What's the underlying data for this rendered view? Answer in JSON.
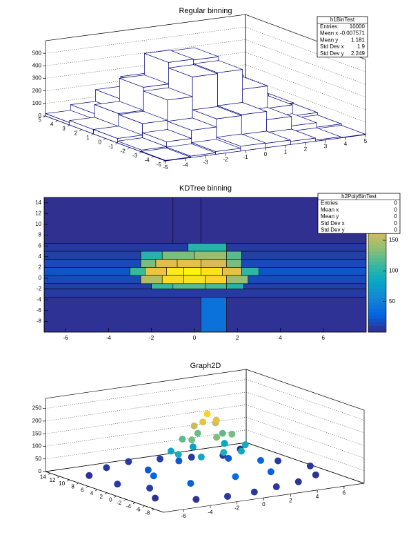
{
  "chart_data": [
    {
      "type": "lego",
      "title": "Regular binning",
      "x_edges": [
        -5,
        -3.75,
        -2.5,
        -1.25,
        0,
        1.25,
        2.5,
        3.75,
        5
      ],
      "y_edges": [
        -5,
        -3,
        -1,
        1,
        3,
        5
      ],
      "values": [
        [
          4,
          12,
          22,
          38,
          35,
          25,
          9,
          3
        ],
        [
          15,
          55,
          120,
          185,
          192,
          126,
          50,
          14
        ],
        [
          36,
          128,
          290,
          448,
          455,
          297,
          120,
          33
        ],
        [
          35,
          136,
          320,
          492,
          485,
          312,
          138,
          39
        ],
        [
          19,
          64,
          158,
          236,
          244,
          150,
          68,
          17
        ]
      ],
      "xlim": [
        -5,
        5
      ],
      "ylim": [
        -5,
        5
      ],
      "zlim": [
        0,
        600
      ],
      "xticks": [
        -5,
        -4,
        -3,
        -2,
        -1,
        0,
        1,
        2,
        3,
        4,
        5
      ],
      "yticks": [
        -5,
        -4,
        -3,
        -2,
        -1,
        0,
        1,
        2,
        3,
        4,
        5
      ],
      "zticks": [
        0,
        100,
        200,
        300,
        400,
        500
      ],
      "grid": true,
      "color": "#ffffff",
      "edge_color": "#000080",
      "stats": {
        "title": "h1BinTest",
        "rows": [
          {
            "label": "Entries",
            "value": 10000
          },
          {
            "label": "Mean x",
            "value": -0.007571
          },
          {
            "label": "Mean y",
            "value": 1.181
          },
          {
            "label": "Std Dev x",
            "value": 1.9
          },
          {
            "label": "Std Dev y",
            "value": 2.249
          }
        ]
      }
    },
    {
      "type": "poly",
      "title": "KDTree binning",
      "bins": [
        {
          "x": [
            -7,
            -1
          ],
          "y": [
            6.5,
            15
          ]
        },
        {
          "x": [
            -1,
            0.3
          ],
          "y": [
            6.5,
            15
          ]
        },
        {
          "x": [
            0.3,
            8
          ],
          "y": [
            6.5,
            15
          ]
        },
        {
          "x": [
            -7,
            -0.3
          ],
          "y": [
            5,
            6.5
          ]
        },
        {
          "x": [
            -0.3,
            1.5
          ],
          "y": [
            5,
            6.5
          ]
        },
        {
          "x": [
            1.5,
            8
          ],
          "y": [
            5,
            6.5
          ]
        },
        {
          "x": [
            -7,
            -2.5
          ],
          "y": [
            3.5,
            5
          ]
        },
        {
          "x": [
            -2.5,
            -1.5
          ],
          "y": [
            3.5,
            5
          ]
        },
        {
          "x": [
            -1.5,
            0
          ],
          "y": [
            3.5,
            5
          ]
        },
        {
          "x": [
            0,
            1.5
          ],
          "y": [
            3.5,
            5
          ]
        },
        {
          "x": [
            1.5,
            2.2
          ],
          "y": [
            3.5,
            5
          ]
        },
        {
          "x": [
            2.2,
            8
          ],
          "y": [
            3.5,
            5
          ]
        },
        {
          "x": [
            -7,
            -2.5
          ],
          "y": [
            2,
            3.5
          ]
        },
        {
          "x": [
            -2.5,
            -1.8
          ],
          "y": [
            2,
            3.5
          ]
        },
        {
          "x": [
            -1.8,
            -0.8
          ],
          "y": [
            2,
            3.5
          ]
        },
        {
          "x": [
            -0.8,
            0.3
          ],
          "y": [
            2,
            3.5
          ]
        },
        {
          "x": [
            0.3,
            1.5
          ],
          "y": [
            2,
            3.5
          ]
        },
        {
          "x": [
            1.5,
            2.2
          ],
          "y": [
            2,
            3.5
          ]
        },
        {
          "x": [
            2.2,
            8
          ],
          "y": [
            2,
            3.5
          ]
        },
        {
          "x": [
            -7,
            -3
          ],
          "y": [
            0.5,
            2
          ]
        },
        {
          "x": [
            -3,
            -2.3
          ],
          "y": [
            0.5,
            2
          ]
        },
        {
          "x": [
            -2.3,
            -1.3
          ],
          "y": [
            0.5,
            2
          ]
        },
        {
          "x": [
            -1.3,
            -0.5
          ],
          "y": [
            0.5,
            2
          ]
        },
        {
          "x": [
            -0.5,
            0.3
          ],
          "y": [
            0.5,
            2
          ]
        },
        {
          "x": [
            0.3,
            1.3
          ],
          "y": [
            0.5,
            2
          ]
        },
        {
          "x": [
            1.3,
            2.2
          ],
          "y": [
            0.5,
            2
          ]
        },
        {
          "x": [
            2.2,
            3
          ],
          "y": [
            0.5,
            2
          ]
        },
        {
          "x": [
            3,
            8
          ],
          "y": [
            0.5,
            2
          ]
        },
        {
          "x": [
            -7,
            -2.5
          ],
          "y": [
            -1,
            0.5
          ]
        },
        {
          "x": [
            -2.5,
            -1.5
          ],
          "y": [
            -1,
            0.5
          ]
        },
        {
          "x": [
            -1.5,
            -0.5
          ],
          "y": [
            -1,
            0.5
          ]
        },
        {
          "x": [
            -0.5,
            0.5
          ],
          "y": [
            -1,
            0.5
          ]
        },
        {
          "x": [
            0.5,
            1.5
          ],
          "y": [
            -1,
            0.5
          ]
        },
        {
          "x": [
            1.5,
            2.5
          ],
          "y": [
            -1,
            0.5
          ]
        },
        {
          "x": [
            2.5,
            8
          ],
          "y": [
            -1,
            0.5
          ]
        },
        {
          "x": [
            -7,
            -2
          ],
          "y": [
            -2,
            -1
          ]
        },
        {
          "x": [
            -2,
            -1
          ],
          "y": [
            -2,
            -1
          ]
        },
        {
          "x": [
            -1,
            0.5
          ],
          "y": [
            -2,
            -1
          ]
        },
        {
          "x": [
            0.5,
            1.5
          ],
          "y": [
            -2,
            -1
          ]
        },
        {
          "x": [
            1.5,
            2.3
          ],
          "y": [
            -2,
            -1
          ]
        },
        {
          "x": [
            2.3,
            8
          ],
          "y": [
            -2,
            -1
          ]
        },
        {
          "x": [
            -7,
            8
          ],
          "y": [
            -3.5,
            -2
          ]
        },
        {
          "x": [
            -7,
            0.3
          ],
          "y": [
            -10,
            -3.5
          ]
        },
        {
          "x": [
            0.3,
            1.5
          ],
          "y": [
            -10,
            -3.5
          ]
        },
        {
          "x": [
            1.5,
            8
          ],
          "y": [
            -10,
            -3.5
          ]
        }
      ],
      "values": [
        3,
        3,
        3,
        8,
        100,
        8,
        10,
        100,
        130,
        140,
        120,
        10,
        15,
        130,
        170,
        175,
        165,
        130,
        15,
        20,
        110,
        180,
        210,
        215,
        205,
        175,
        105,
        20,
        15,
        150,
        200,
        205,
        195,
        140,
        15,
        10,
        110,
        120,
        115,
        100,
        10,
        8,
        4,
        40,
        4
      ],
      "xlim": [
        -7,
        8
      ],
      "ylim": [
        -10,
        15
      ],
      "zlim": [
        0,
        220
      ],
      "xticks": [
        -6,
        -4,
        -2,
        0,
        2,
        4,
        6
      ],
      "yticks": [
        -8,
        -6,
        -4,
        -2,
        0,
        2,
        4,
        6,
        8,
        10,
        12,
        14
      ],
      "zticks": [
        50,
        100,
        150,
        200
      ],
      "palette": [
        "#352a87",
        "#0363e1",
        "#1485d4",
        "#06a7c6",
        "#38b99e",
        "#92bf73",
        "#d9ba56",
        "#fcce2e",
        "#f9fb0e"
      ],
      "stats": {
        "title": "h2PolyBinTest",
        "rows": [
          {
            "label": "Entries",
            "value": 0
          },
          {
            "label": "Mean x",
            "value": 0
          },
          {
            "label": "Mean y",
            "value": 0
          },
          {
            "label": "Std Dev x",
            "value": 0
          },
          {
            "label": "Std Dev y",
            "value": 0
          }
        ]
      }
    },
    {
      "type": "scatter3d",
      "title": "Graph2D",
      "x": [
        -6,
        -4,
        -2,
        0,
        2,
        4,
        6,
        -6,
        -5,
        -6,
        -4,
        -2,
        0,
        2,
        4,
        6,
        7,
        6,
        -3,
        3,
        -4,
        4,
        -3,
        3,
        0,
        0,
        -2,
        2,
        -2.5,
        2.5,
        -1.5,
        1.5,
        0,
        0,
        -1.5,
        1.5,
        -1.5,
        1.5,
        0,
        0,
        -0.8,
        0.8,
        -0.5,
        0.5,
        0
      ],
      "y": [
        10,
        12,
        13,
        12,
        11,
        10,
        12,
        4,
        0,
        -4,
        -7,
        -8,
        -8,
        -7,
        -6,
        -4,
        0,
        4,
        6,
        6,
        2,
        2,
        -3,
        -3,
        -4,
        8,
        4,
        4,
        1,
        1,
        -1,
        -1,
        5,
        -1.5,
        3,
        3,
        1,
        1,
        0,
        4,
        2.5,
        2.5,
        1.5,
        1.5,
        2
      ],
      "z": [
        5,
        8,
        10,
        12,
        10,
        8,
        5,
        10,
        12,
        6,
        5,
        8,
        10,
        9,
        7,
        6,
        8,
        10,
        30,
        30,
        40,
        40,
        35,
        35,
        45,
        30,
        110,
        110,
        120,
        120,
        115,
        115,
        105,
        125,
        160,
        160,
        170,
        170,
        175,
        165,
        210,
        210,
        230,
        230,
        255
      ],
      "xlim": [
        -7.5,
        7.5
      ],
      "ylim": [
        -10,
        15
      ],
      "zlim": [
        0,
        290
      ],
      "xticks": [
        -6,
        -4,
        -2,
        0,
        2,
        4,
        6
      ],
      "yticks": [
        -8,
        -6,
        -4,
        -2,
        0,
        2,
        4,
        6,
        8,
        10,
        12,
        14
      ],
      "zticks": [
        0,
        50,
        100,
        150,
        200,
        250
      ],
      "grid": true,
      "palette": [
        "#352a87",
        "#0363e1",
        "#1485d4",
        "#06a7c6",
        "#38b99e",
        "#92bf73",
        "#d9ba56",
        "#fcce2e",
        "#f9fb0e"
      ]
    }
  ]
}
